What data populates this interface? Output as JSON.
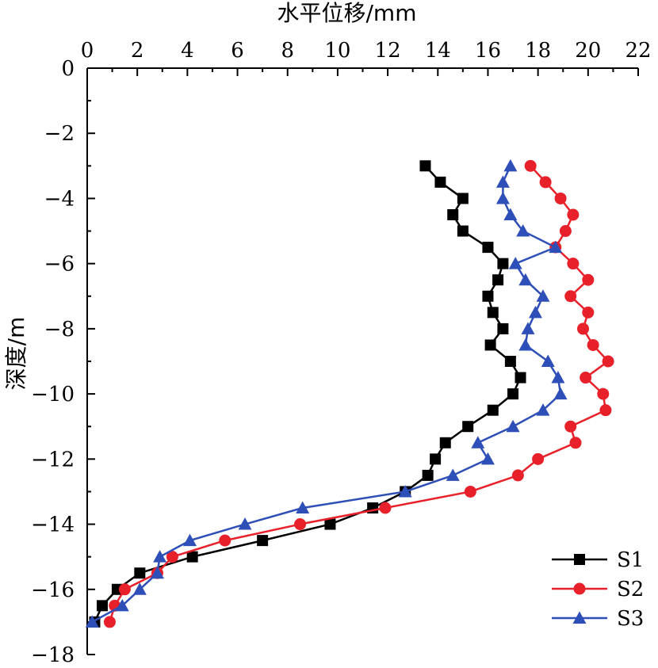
{
  "chart_data": {
    "type": "line",
    "xlabel": "水平位移/mm",
    "ylabel": "深度/m",
    "xlim": [
      0,
      22
    ],
    "ylim": [
      -18,
      0
    ],
    "x_axis_position": "top",
    "x_ticks": [
      0,
      2,
      4,
      6,
      8,
      10,
      12,
      14,
      16,
      18,
      20,
      22
    ],
    "y_ticks": [
      0,
      -2,
      -4,
      -6,
      -8,
      -10,
      -12,
      -14,
      -16,
      -18
    ],
    "x_tick_labels": [
      "0",
      "2",
      "4",
      "6",
      "8",
      "10",
      "12",
      "14",
      "16",
      "18",
      "20",
      "22"
    ],
    "y_tick_labels": [
      "0",
      "−2",
      "−4",
      "−6",
      "−8",
      "−10",
      "−12",
      "−14",
      "−16",
      "−18"
    ],
    "grid": false,
    "legend_position": "bottom-right",
    "series": [
      {
        "name": "S1",
        "color": "#000000",
        "marker": "square",
        "points": [
          [
            13.5,
            -3
          ],
          [
            14.1,
            -3.5
          ],
          [
            15.0,
            -4
          ],
          [
            14.6,
            -4.5
          ],
          [
            15.0,
            -5
          ],
          [
            16.0,
            -5.5
          ],
          [
            16.6,
            -6
          ],
          [
            16.4,
            -6.5
          ],
          [
            16.0,
            -7
          ],
          [
            16.2,
            -7.5
          ],
          [
            16.6,
            -8
          ],
          [
            16.1,
            -8.5
          ],
          [
            16.9,
            -9
          ],
          [
            17.3,
            -9.5
          ],
          [
            17.0,
            -10
          ],
          [
            16.2,
            -10.5
          ],
          [
            15.2,
            -11
          ],
          [
            14.3,
            -11.5
          ],
          [
            13.9,
            -12
          ],
          [
            13.6,
            -12.5
          ],
          [
            12.7,
            -13
          ],
          [
            11.4,
            -13.5
          ],
          [
            9.7,
            -14
          ],
          [
            7.0,
            -14.5
          ],
          [
            4.2,
            -15
          ],
          [
            2.1,
            -15.5
          ],
          [
            1.2,
            -16
          ],
          [
            0.6,
            -16.5
          ],
          [
            0.3,
            -17
          ]
        ]
      },
      {
        "name": "S2",
        "color": "#e8202a",
        "marker": "circle",
        "points": [
          [
            17.7,
            -3
          ],
          [
            18.3,
            -3.5
          ],
          [
            18.9,
            -4
          ],
          [
            19.4,
            -4.5
          ],
          [
            19.1,
            -5
          ],
          [
            18.7,
            -5.5
          ],
          [
            19.4,
            -6
          ],
          [
            20.0,
            -6.5
          ],
          [
            19.3,
            -7
          ],
          [
            20.0,
            -7.5
          ],
          [
            19.8,
            -8
          ],
          [
            20.2,
            -8.5
          ],
          [
            20.8,
            -9
          ],
          [
            19.9,
            -9.5
          ],
          [
            20.6,
            -10
          ],
          [
            20.7,
            -10.5
          ],
          [
            19.3,
            -11
          ],
          [
            19.5,
            -11.5
          ],
          [
            18.0,
            -12
          ],
          [
            17.2,
            -12.5
          ],
          [
            15.3,
            -13
          ],
          [
            11.9,
            -13.5
          ],
          [
            8.5,
            -14
          ],
          [
            5.5,
            -14.5
          ],
          [
            3.4,
            -15
          ],
          [
            2.8,
            -15.5
          ],
          [
            1.5,
            -16
          ],
          [
            1.1,
            -16.5
          ],
          [
            0.9,
            -17
          ]
        ]
      },
      {
        "name": "S3",
        "color": "#2f4fb8",
        "marker": "triangle",
        "points": [
          [
            16.9,
            -3
          ],
          [
            16.6,
            -3.5
          ],
          [
            16.6,
            -4
          ],
          [
            16.9,
            -4.5
          ],
          [
            17.4,
            -5
          ],
          [
            18.7,
            -5.5
          ],
          [
            17.1,
            -6
          ],
          [
            17.5,
            -6.5
          ],
          [
            18.2,
            -7
          ],
          [
            17.9,
            -7.5
          ],
          [
            17.6,
            -8
          ],
          [
            17.5,
            -8.5
          ],
          [
            18.4,
            -9
          ],
          [
            18.8,
            -9.5
          ],
          [
            18.9,
            -10
          ],
          [
            18.2,
            -10.5
          ],
          [
            17.0,
            -11
          ],
          [
            15.6,
            -11.5
          ],
          [
            16.0,
            -12
          ],
          [
            14.6,
            -12.5
          ],
          [
            12.7,
            -13
          ],
          [
            8.6,
            -13.5
          ],
          [
            6.3,
            -14
          ],
          [
            4.1,
            -14.5
          ],
          [
            2.9,
            -15
          ],
          [
            2.8,
            -15.5
          ],
          [
            2.1,
            -16
          ],
          [
            1.4,
            -16.5
          ],
          [
            0.2,
            -17
          ]
        ]
      }
    ]
  }
}
